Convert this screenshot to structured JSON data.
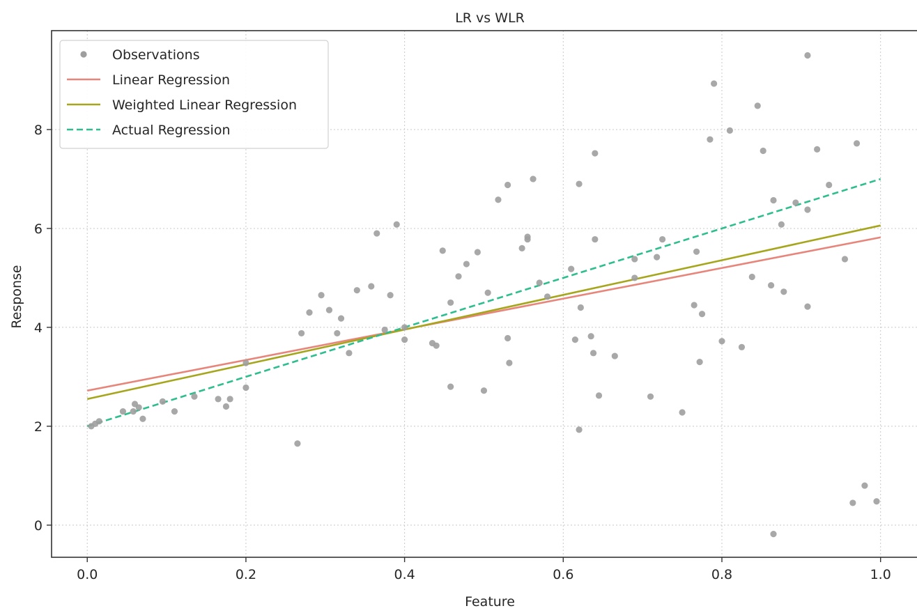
{
  "chart_data": {
    "type": "scatter",
    "title": "LR vs WLR",
    "xlabel": "Feature",
    "ylabel": "Response",
    "xlim": [
      -0.045,
      1.06
    ],
    "ylim": [
      -0.65,
      10.0
    ],
    "xticks": [
      0.0,
      0.2,
      0.4,
      0.6,
      0.8,
      1.0
    ],
    "xtick_labels": [
      "0.0",
      "0.2",
      "0.4",
      "0.6",
      "0.8",
      "1.0"
    ],
    "yticks": [
      0,
      2,
      4,
      6,
      8
    ],
    "ytick_labels": [
      "0",
      "2",
      "4",
      "6",
      "8"
    ],
    "grid": true,
    "legend_position": "top-left",
    "legend": [
      {
        "label": "Observations",
        "kind": "marker",
        "color": "#9e9e9e"
      },
      {
        "label": "Linear Regression",
        "kind": "line",
        "color": "#e8857a"
      },
      {
        "label": "Weighted Linear Regression",
        "kind": "line",
        "color": "#a5a61c"
      },
      {
        "label": "Actual Regression",
        "kind": "dashed",
        "color": "#2dbd8f"
      }
    ],
    "observations": [
      [
        0.005,
        2.0
      ],
      [
        0.01,
        2.05
      ],
      [
        0.015,
        2.1
      ],
      [
        0.045,
        2.3
      ],
      [
        0.06,
        2.45
      ],
      [
        0.058,
        2.3
      ],
      [
        0.065,
        2.38
      ],
      [
        0.07,
        2.15
      ],
      [
        0.095,
        2.5
      ],
      [
        0.11,
        2.3
      ],
      [
        0.135,
        2.6
      ],
      [
        0.165,
        2.55
      ],
      [
        0.175,
        2.4
      ],
      [
        0.18,
        2.55
      ],
      [
        0.2,
        2.78
      ],
      [
        0.2,
        3.28
      ],
      [
        0.265,
        1.65
      ],
      [
        0.27,
        3.88
      ],
      [
        0.28,
        4.3
      ],
      [
        0.295,
        4.65
      ],
      [
        0.305,
        4.35
      ],
      [
        0.315,
        3.88
      ],
      [
        0.32,
        4.18
      ],
      [
        0.33,
        3.48
      ],
      [
        0.34,
        4.75
      ],
      [
        0.358,
        4.83
      ],
      [
        0.365,
        5.9
      ],
      [
        0.375,
        3.95
      ],
      [
        0.382,
        4.65
      ],
      [
        0.39,
        6.08
      ],
      [
        0.4,
        3.75
      ],
      [
        0.4,
        4.0
      ],
      [
        0.435,
        3.68
      ],
      [
        0.44,
        3.63
      ],
      [
        0.448,
        5.55
      ],
      [
        0.458,
        2.8
      ],
      [
        0.458,
        4.5
      ],
      [
        0.468,
        5.03
      ],
      [
        0.478,
        5.28
      ],
      [
        0.492,
        5.52
      ],
      [
        0.5,
        2.72
      ],
      [
        0.505,
        4.7
      ],
      [
        0.518,
        6.58
      ],
      [
        0.53,
        3.78
      ],
      [
        0.532,
        3.28
      ],
      [
        0.53,
        6.88
      ],
      [
        0.548,
        5.6
      ],
      [
        0.555,
        5.78
      ],
      [
        0.555,
        5.83
      ],
      [
        0.562,
        7.0
      ],
      [
        0.57,
        4.9
      ],
      [
        0.58,
        4.62
      ],
      [
        0.61,
        5.18
      ],
      [
        0.615,
        3.75
      ],
      [
        0.62,
        6.9
      ],
      [
        0.62,
        1.93
      ],
      [
        0.622,
        4.4
      ],
      [
        0.635,
        3.82
      ],
      [
        0.638,
        3.48
      ],
      [
        0.64,
        5.78
      ],
      [
        0.64,
        7.52
      ],
      [
        0.645,
        2.62
      ],
      [
        0.665,
        3.42
      ],
      [
        0.69,
        5.38
      ],
      [
        0.69,
        5.0
      ],
      [
        0.71,
        2.6
      ],
      [
        0.718,
        5.42
      ],
      [
        0.725,
        5.78
      ],
      [
        0.75,
        2.28
      ],
      [
        0.765,
        4.45
      ],
      [
        0.768,
        5.53
      ],
      [
        0.772,
        3.3
      ],
      [
        0.775,
        4.27
      ],
      [
        0.785,
        7.8
      ],
      [
        0.79,
        8.93
      ],
      [
        0.8,
        3.72
      ],
      [
        0.81,
        7.98
      ],
      [
        0.825,
        3.6
      ],
      [
        0.838,
        5.02
      ],
      [
        0.845,
        8.48
      ],
      [
        0.852,
        7.57
      ],
      [
        0.862,
        4.85
      ],
      [
        0.865,
        6.57
      ],
      [
        0.875,
        6.08
      ],
      [
        0.878,
        4.72
      ],
      [
        0.865,
        -0.18
      ],
      [
        0.893,
        6.52
      ],
      [
        0.908,
        9.5
      ],
      [
        0.908,
        6.38
      ],
      [
        0.908,
        4.42
      ],
      [
        0.92,
        7.6
      ],
      [
        0.935,
        6.88
      ],
      [
        0.955,
        5.38
      ],
      [
        0.965,
        0.45
      ],
      [
        0.97,
        7.72
      ],
      [
        0.98,
        0.8
      ],
      [
        0.995,
        0.48
      ]
    ],
    "series": [
      {
        "name": "Linear Regression",
        "x": [
          0.0,
          1.0
        ],
        "y": [
          2.72,
          5.82
        ]
      },
      {
        "name": "Weighted Linear Regression",
        "x": [
          0.0,
          1.0
        ],
        "y": [
          2.55,
          6.06
        ]
      },
      {
        "name": "Actual Regression",
        "x": [
          0.0,
          1.0
        ],
        "y": [
          2.0,
          7.0
        ]
      }
    ]
  }
}
